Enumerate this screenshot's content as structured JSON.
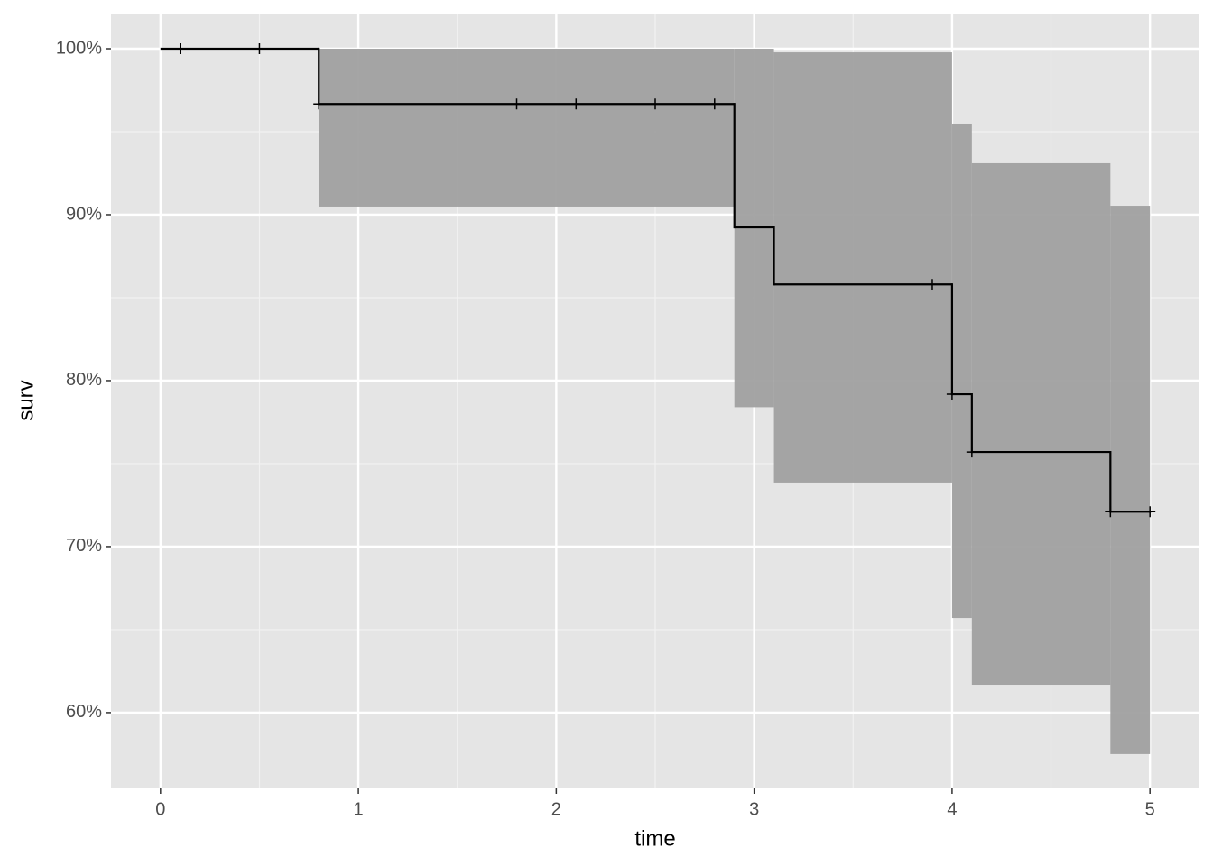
{
  "chart_data": {
    "type": "step",
    "xlabel": "time",
    "ylabel": "surv",
    "time": [
      0,
      0.8,
      2.9,
      3.1,
      4.0,
      4.1,
      4.8,
      5.0
    ],
    "surv": [
      100,
      96.67,
      89.24,
      85.8,
      79.18,
      75.7,
      72.1,
      72.1
    ],
    "upper": [
      100,
      100,
      100,
      99.78,
      95.49,
      93.1,
      90.54,
      90.54
    ],
    "lower": [
      100,
      90.49,
      78.4,
      73.86,
      65.7,
      61.68,
      57.5,
      57.5
    ],
    "censor_x": [
      0.1,
      0.5,
      0.8,
      1.8,
      2.1,
      2.5,
      2.8,
      3.9,
      4.0,
      4.1,
      4.8,
      5.0
    ],
    "censor_y": [
      100,
      100,
      96.67,
      96.67,
      96.67,
      96.67,
      96.67,
      85.8,
      79.18,
      75.7,
      72.1,
      72.1
    ],
    "line_color": "#000000",
    "band_color": "#a0a0a0",
    "xlim": [
      -0.25,
      5.25
    ],
    "ylim": [
      55.43,
      102.12
    ],
    "xticks": [
      0,
      1,
      2,
      3,
      4,
      5
    ],
    "xminor": [
      0.5,
      1.5,
      2.5,
      3.5,
      4.5
    ],
    "yticks": [
      {
        "value": 60,
        "label": "60%"
      },
      {
        "value": 70,
        "label": "70%"
      },
      {
        "value": 80,
        "label": "80%"
      },
      {
        "value": 90,
        "label": "90%"
      },
      {
        "value": 100,
        "label": "100%"
      }
    ],
    "yminor": [
      65,
      75,
      85,
      95
    ],
    "grid": true
  }
}
